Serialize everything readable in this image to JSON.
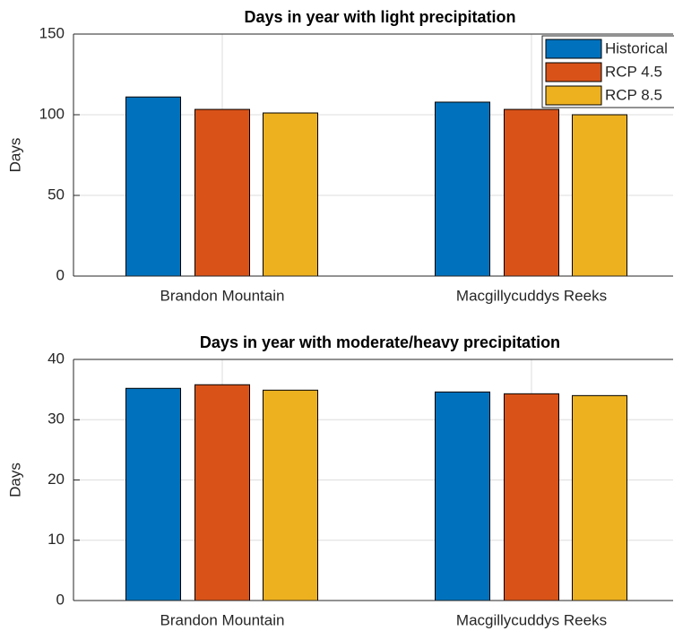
{
  "chart_data": [
    {
      "type": "bar",
      "title": "Days in year with light precipitation",
      "ylabel": "Days",
      "categories": [
        "Brandon Mountain",
        "Macgillycuddys Reeks"
      ],
      "series": [
        {
          "name": "Historical",
          "color": "#0072BD",
          "values": [
            111,
            107.8
          ]
        },
        {
          "name": "RCP 4.5",
          "color": "#D95319",
          "values": [
            103.3,
            103.3
          ]
        },
        {
          "name": "RCP 8.5",
          "color": "#EDB120",
          "values": [
            101.1,
            100
          ]
        }
      ],
      "ylim": [
        0,
        150
      ],
      "yticks": [
        0,
        50,
        100,
        150
      ],
      "grid": true,
      "legend": "northeast"
    },
    {
      "type": "bar",
      "title": "Days in year with moderate/heavy precipitation",
      "ylabel": "Days",
      "categories": [
        "Brandon Mountain",
        "Macgillycuddys Reeks"
      ],
      "series": [
        {
          "color": "#0072BD",
          "values": [
            35.2,
            34.6
          ]
        },
        {
          "color": "#D95319",
          "values": [
            35.8,
            34.3
          ]
        },
        {
          "color": "#EDB120",
          "values": [
            34.9,
            34.0
          ]
        }
      ],
      "ylim": [
        0,
        40
      ],
      "yticks": [
        0,
        10,
        20,
        30,
        40
      ],
      "grid": true
    }
  ]
}
